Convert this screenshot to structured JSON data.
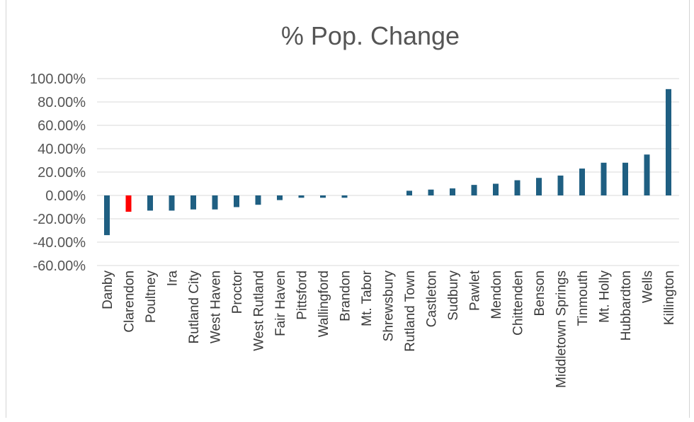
{
  "chart_data": {
    "type": "bar",
    "title": "% Pop. Change",
    "xlabel": "",
    "ylabel": "",
    "ylim": [
      -60,
      100
    ],
    "ytick_step": 20,
    "ytick_labels": [
      "100.00%",
      "80.00%",
      "60.00%",
      "40.00%",
      "20.00%",
      "0.00%",
      "-20.00%",
      "-40.00%",
      "-60.00%"
    ],
    "grid": true,
    "legend": "none",
    "bar_color": "#1f5f82",
    "highlight_color": "#ff0000",
    "highlight_category": "Clarendon",
    "categories": [
      "Danby",
      "Clarendon",
      "Poultney",
      "Ira",
      "Rutland City",
      "West Haven",
      "Proctor",
      "West Rutland",
      "Fair Haven",
      "Pittsford",
      "Wallingford",
      "Brandon",
      "Mt. Tabor",
      "Shrewsbury",
      "Rutland Town",
      "Castleton",
      "Sudbury",
      "Pawlet",
      "Mendon",
      "Chittenden",
      "Benson",
      "Middletown Springs",
      "Tinmouth",
      "Mt. Holly",
      "Hubbardton",
      "Wells",
      "Killington"
    ],
    "values": [
      -34,
      -14,
      -13,
      -13,
      -12,
      -12,
      -10,
      -8,
      -4,
      -2,
      -2,
      -2,
      0,
      0,
      4,
      5,
      6,
      9,
      10,
      13,
      15,
      17,
      23,
      28,
      28,
      35,
      91
    ]
  }
}
